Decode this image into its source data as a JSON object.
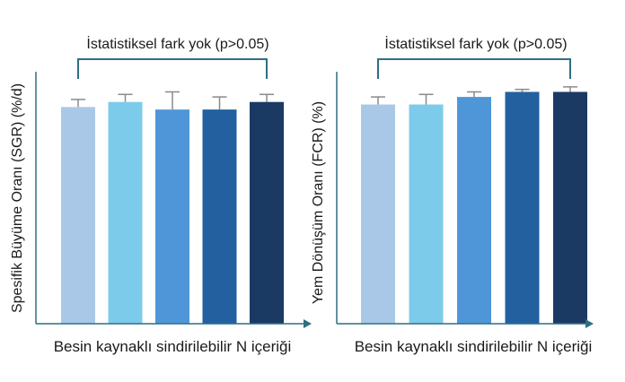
{
  "colors": {
    "axis": "#2f6f83",
    "bracket": "#2f6f83",
    "error_bar": "#8a8a8a",
    "bars": [
      "#a9c8e8",
      "#7ccbeb",
      "#4f96d8",
      "#2260a0",
      "#1a3a63"
    ]
  },
  "chart_data": [
    {
      "type": "bar",
      "title": "",
      "xlabel": "Besin kaynaklı sindirilebilir N içeriği",
      "ylabel": "Spesifik Büyüme Oranı (SGR) (%/d)",
      "categories": [
        "",
        "",
        "",
        "",
        ""
      ],
      "values": [
        0.86,
        0.88,
        0.85,
        0.85,
        0.88
      ],
      "errors": [
        0.03,
        0.03,
        0.07,
        0.05,
        0.03
      ],
      "ylim": [
        0,
        1
      ],
      "grid": false,
      "annotation": {
        "text": "İstatistiksel fark yok (p>0.05)",
        "from_bar": 0,
        "to_bar": 4
      }
    },
    {
      "type": "bar",
      "title": "",
      "xlabel": "Besin kaynaklı sindirilebilir N içeriği",
      "ylabel": "Yem Dönüşüm Oranı (FCR) (%)",
      "categories": [
        "",
        "",
        "",
        "",
        ""
      ],
      "values": [
        0.87,
        0.87,
        0.9,
        0.92,
        0.92
      ],
      "errors": [
        0.03,
        0.04,
        0.02,
        0.01,
        0.02
      ],
      "ylim": [
        0,
        1
      ],
      "grid": false,
      "annotation": {
        "text": "İstatistiksel fark yok (p>0.05)",
        "from_bar": 0,
        "to_bar": 4
      }
    }
  ]
}
